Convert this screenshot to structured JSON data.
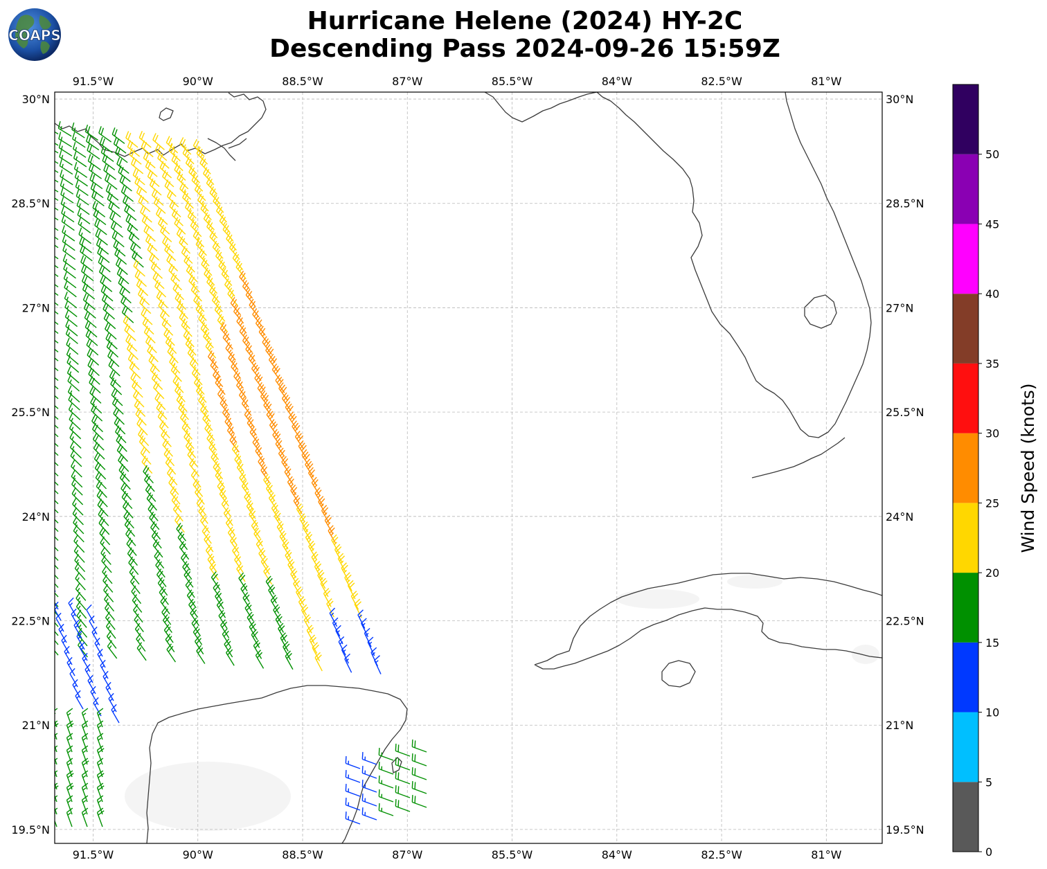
{
  "title_line1": "Hurricane Helene (2024) HY-2C",
  "title_line2": "Descending Pass 2024-09-26 15:59Z",
  "logo": {
    "text": "COAPS"
  },
  "map": {
    "lon_range": [
      -92.05,
      -80.2
    ],
    "lat_range": [
      19.3,
      30.1
    ],
    "lon_ticks": [
      -91.5,
      -90,
      -88.5,
      -87,
      -85.5,
      -84,
      -82.5,
      -81
    ],
    "lat_ticks": [
      19.5,
      21,
      22.5,
      24,
      25.5,
      27,
      28.5,
      30
    ],
    "lon_labels": [
      "91.5°W",
      "90°W",
      "88.5°W",
      "87°W",
      "85.5°W",
      "84°W",
      "82.5°W",
      "81°W"
    ],
    "lat_labels": [
      "19.5°N",
      "21°N",
      "22.5°N",
      "24°N",
      "25.5°N",
      "27°N",
      "28.5°N",
      "30°N"
    ],
    "gridlines": true
  },
  "colorbar": {
    "label": "Wind Speed (knots)",
    "tick_values": [
      0,
      5,
      10,
      15,
      20,
      25,
      30,
      35,
      40,
      45,
      50
    ],
    "tick_labels": [
      "0",
      "5",
      "10",
      "15",
      "20",
      "25",
      "30",
      "35",
      "40",
      "45",
      "50"
    ],
    "max": 55,
    "colors": [
      "#595959",
      "#00bfff",
      "#0039ff",
      "#009000",
      "#ffd700",
      "#ff8c00",
      "#ff0f0f",
      "#833d28",
      "#ff00ff",
      "#8a00b3",
      "#300060"
    ]
  },
  "wind_field": {
    "description": "HY-2C scatterometer swath; wind barbs colored by speed",
    "speed_bins_knots": [
      [
        0,
        5
      ],
      [
        5,
        10
      ],
      [
        10,
        15
      ],
      [
        15,
        20
      ],
      [
        20,
        25
      ],
      [
        25,
        30
      ],
      [
        30,
        35
      ]
    ],
    "dominant_direction": "northwesterly-to-westerly flow west of Helene"
  }
}
